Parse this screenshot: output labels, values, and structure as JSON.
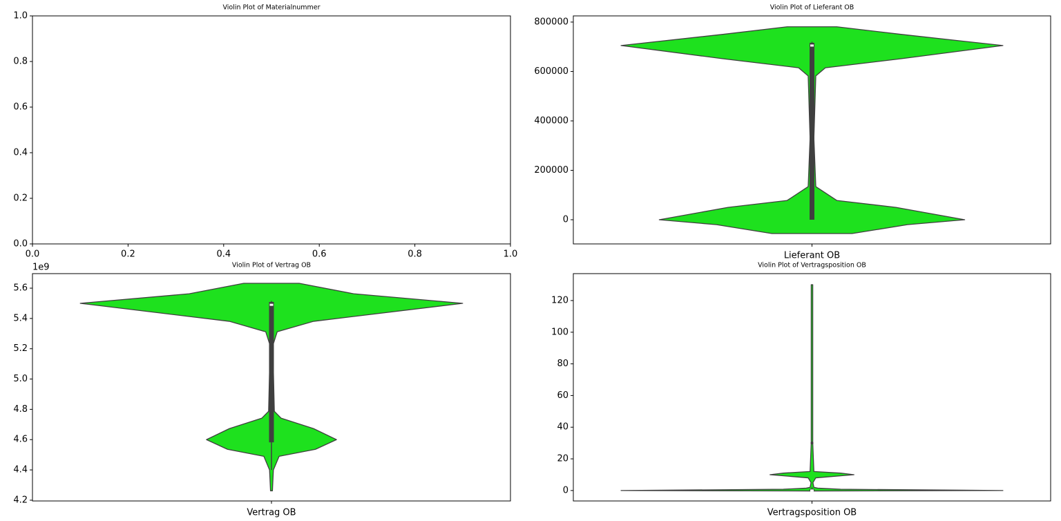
{
  "chart_data": [
    {
      "type": "empty",
      "title": "Violin Plot of Materialnummer",
      "xlim": [
        0,
        1
      ],
      "xticks": [
        {
          "value": 0,
          "label": "0.0"
        },
        0.2,
        0.4,
        0.6,
        0.8,
        {
          "value": 1,
          "label": "1.0"
        }
      ],
      "ylim": [
        0,
        1
      ],
      "yticks": [
        {
          "value": 0,
          "label": "0.0"
        },
        0.2,
        0.4,
        0.6,
        0.8,
        {
          "value": 1,
          "label": "1.0"
        }
      ]
    },
    {
      "type": "violin",
      "title": "Violin Plot of Lieferant OB",
      "categories": [
        "Lieferant OB"
      ],
      "color": "#1ee11e",
      "edge_color": "#3f3f3f",
      "violin": {
        "y": [
          -56000,
          -20000,
          0,
          50000,
          78000,
          134000,
          330000,
          582000,
          615000,
          652000,
          705000,
          750000,
          781000
        ],
        "density": [
          0.21,
          0.5,
          0.8,
          0.44,
          0.13,
          0.02,
          0.01,
          0.02,
          0.07,
          0.47,
          1.0,
          0.47,
          0.13
        ]
      },
      "box": {
        "whislo": 0,
        "q1": 0,
        "median": 705000,
        "q3": 716000,
        "whishi": 720000
      },
      "ylim": [
        -97900,
        825000
      ],
      "yticks": [
        0,
        200000,
        400000,
        600000,
        800000
      ]
    },
    {
      "type": "violin",
      "title": "Violin Plot of Vertrag OB",
      "categories": [
        "Vertrag OB"
      ],
      "color": "#1ee11e",
      "edge_color": "#3f3f3f",
      "y_offset_label": "1e9",
      "violin": {
        "y": [
          4262000000,
          4400000000,
          4490000000,
          4536000000,
          4600000000,
          4673000000,
          4742000000,
          4787000000,
          5221000000,
          5312000000,
          5381000000,
          5500000000,
          5563000000,
          5632000000
        ],
        "density": [
          0.005,
          0.01,
          0.04,
          0.23,
          0.34,
          0.22,
          0.05,
          0.015,
          0.007,
          0.03,
          0.22,
          1.0,
          0.43,
          0.145
        ]
      },
      "box": {
        "whislo": 4400000000,
        "q1": 4582000000,
        "median": 5490000000,
        "q3": 5509000000,
        "whishi": 5515000000
      },
      "ylim": [
        4195000000,
        5696000000
      ],
      "yticks": [
        {
          "value": 4200000000,
          "label": "4.2"
        },
        {
          "value": 4400000000,
          "label": "4.4"
        },
        {
          "value": 4600000000,
          "label": "4.6"
        },
        {
          "value": 4800000000,
          "label": "4.8"
        },
        {
          "value": 5000000000,
          "label": "5.0"
        },
        {
          "value": 5200000000,
          "label": "5.2"
        },
        {
          "value": 5400000000,
          "label": "5.4"
        },
        {
          "value": 5600000000,
          "label": "5.6"
        }
      ]
    },
    {
      "type": "violin",
      "title": "Violin Plot of Vertragsposition OB",
      "categories": [
        "Vertragsposition OB"
      ],
      "color": "#1ee11e",
      "edge_color": "#3f3f3f",
      "violin": {
        "y": [
          -0.3,
          0,
          0.8,
          1.5,
          2,
          5,
          8,
          10,
          11,
          12,
          30,
          130
        ],
        "density": [
          0.01,
          1.0,
          0.15,
          0.03,
          0.01,
          0.005,
          0.02,
          0.22,
          0.15,
          0.01,
          0.004,
          0.004
        ]
      },
      "box": {
        "whislo": 0,
        "q1": 0,
        "median": 0,
        "q3": 1,
        "whishi": 2
      },
      "outliers": [
        30
      ],
      "ylim": [
        -6.6,
        137
      ],
      "yticks": [
        0,
        20,
        40,
        60,
        80,
        100,
        120
      ]
    }
  ]
}
